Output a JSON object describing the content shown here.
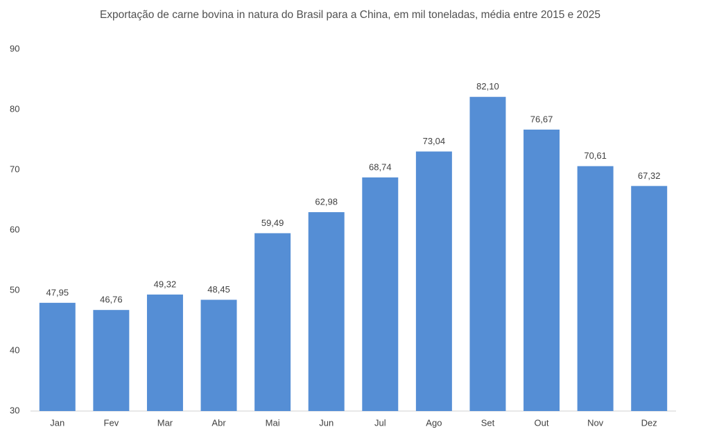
{
  "chart_data": {
    "type": "bar",
    "title": "Exportação de carne bovina in natura do Brasil para a China, em mil toneladas, média entre 2015 e 2025",
    "categories": [
      "Jan",
      "Fev",
      "Mar",
      "Abr",
      "Mai",
      "Jun",
      "Jul",
      "Ago",
      "Set",
      "Out",
      "Nov",
      "Dez"
    ],
    "values": [
      47.95,
      46.76,
      49.32,
      48.45,
      59.49,
      62.98,
      68.74,
      73.04,
      82.1,
      76.67,
      70.61,
      67.32
    ],
    "value_labels": [
      "47,95",
      "46,76",
      "49,32",
      "48,45",
      "59,49",
      "62,98",
      "68,74",
      "73,04",
      "82,10",
      "76,67",
      "70,61",
      "67,32"
    ],
    "color": "#558ed5",
    "ylim": [
      30,
      90
    ],
    "yticks": [
      30,
      40,
      50,
      60,
      70,
      80,
      90
    ],
    "grid": false
  }
}
